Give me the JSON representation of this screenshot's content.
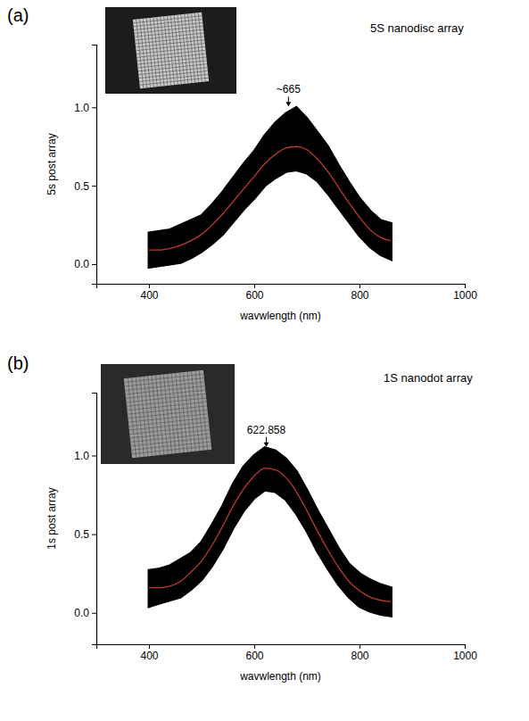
{
  "chart_data": [
    {
      "type": "line",
      "label": "(a)",
      "title": "5S nanodisc array",
      "x_label": "wavwlength (nm)",
      "y_label": "5s post array",
      "xlim": [
        300,
        1000
      ],
      "xticks": [
        400,
        600,
        800,
        1000
      ],
      "ylim": [
        -0.125,
        1.4
      ],
      "yticks": [
        {
          "value": 0,
          "label": "0.0"
        },
        {
          "value": 0.5,
          "label": "0.5"
        },
        {
          "value": 1,
          "label": "1.0"
        }
      ],
      "grid": false,
      "annotations": [
        {
          "text": "~665",
          "x": 665,
          "y": 1.0
        }
      ],
      "series": [
        {
          "type": "area",
          "color": "#000000",
          "x": [
            400,
            420,
            440,
            460,
            480,
            500,
            520,
            540,
            560,
            580,
            600,
            620,
            640,
            660,
            680,
            700,
            720,
            740,
            760,
            780,
            800,
            820,
            840,
            860
          ],
          "low": [
            -0.02,
            -0.01,
            0.0,
            0.01,
            0.04,
            0.08,
            0.13,
            0.19,
            0.27,
            0.35,
            0.42,
            0.5,
            0.55,
            0.59,
            0.6,
            0.58,
            0.53,
            0.45,
            0.36,
            0.27,
            0.18,
            0.11,
            0.06,
            0.03
          ],
          "high": [
            0.2,
            0.21,
            0.22,
            0.25,
            0.28,
            0.31,
            0.38,
            0.46,
            0.55,
            0.64,
            0.72,
            0.82,
            0.9,
            0.96,
            1.0,
            0.93,
            0.84,
            0.75,
            0.63,
            0.52,
            0.42,
            0.34,
            0.28,
            0.26
          ]
        },
        {
          "type": "line",
          "color": "#c0392b",
          "x": [
            400,
            420,
            440,
            460,
            480,
            500,
            520,
            540,
            560,
            580,
            600,
            620,
            640,
            660,
            680,
            700,
            720,
            740,
            760,
            780,
            800,
            820,
            840,
            860
          ],
          "values": [
            0.09,
            0.09,
            0.1,
            0.12,
            0.15,
            0.19,
            0.25,
            0.32,
            0.4,
            0.48,
            0.56,
            0.64,
            0.7,
            0.74,
            0.75,
            0.73,
            0.67,
            0.59,
            0.49,
            0.39,
            0.3,
            0.22,
            0.17,
            0.15
          ]
        }
      ]
    },
    {
      "type": "line",
      "label": "(b)",
      "title": "1S nanodot array",
      "x_label": "wavwlength (nm)",
      "y_label": "1s post array",
      "xlim": [
        300,
        1000
      ],
      "xticks": [
        400,
        600,
        800,
        1000
      ],
      "ylim": [
        -0.2,
        1.4
      ],
      "yticks": [
        {
          "value": 0,
          "label": "0.0"
        },
        {
          "value": 0.5,
          "label": "0.5"
        },
        {
          "value": 1,
          "label": "1.0"
        }
      ],
      "grid": false,
      "annotations": [
        {
          "text": "622.858",
          "x": 622.858,
          "y": 1.05
        }
      ],
      "series": [
        {
          "type": "area",
          "color": "#000000",
          "x": [
            400,
            420,
            440,
            460,
            480,
            500,
            520,
            540,
            560,
            580,
            600,
            620,
            640,
            660,
            680,
            700,
            720,
            740,
            760,
            780,
            800,
            820,
            840,
            860
          ],
          "low": [
            0.04,
            0.06,
            0.08,
            0.1,
            0.15,
            0.21,
            0.3,
            0.41,
            0.54,
            0.65,
            0.73,
            0.78,
            0.77,
            0.72,
            0.63,
            0.52,
            0.39,
            0.28,
            0.18,
            0.1,
            0.04,
            0.01,
            -0.01,
            -0.02
          ],
          "high": [
            0.27,
            0.28,
            0.3,
            0.34,
            0.38,
            0.45,
            0.56,
            0.68,
            0.82,
            0.93,
            1.0,
            1.05,
            1.03,
            0.98,
            0.9,
            0.78,
            0.65,
            0.53,
            0.41,
            0.31,
            0.25,
            0.21,
            0.18,
            0.16
          ]
        },
        {
          "type": "line",
          "color": "#c0392b",
          "x": [
            400,
            420,
            440,
            460,
            480,
            500,
            520,
            540,
            560,
            580,
            600,
            620,
            640,
            660,
            680,
            700,
            720,
            740,
            760,
            780,
            800,
            820,
            840,
            860
          ],
          "values": [
            0.16,
            0.16,
            0.17,
            0.2,
            0.26,
            0.33,
            0.43,
            0.55,
            0.68,
            0.79,
            0.87,
            0.92,
            0.91,
            0.86,
            0.77,
            0.65,
            0.52,
            0.4,
            0.29,
            0.2,
            0.14,
            0.1,
            0.08,
            0.07
          ]
        }
      ]
    }
  ]
}
